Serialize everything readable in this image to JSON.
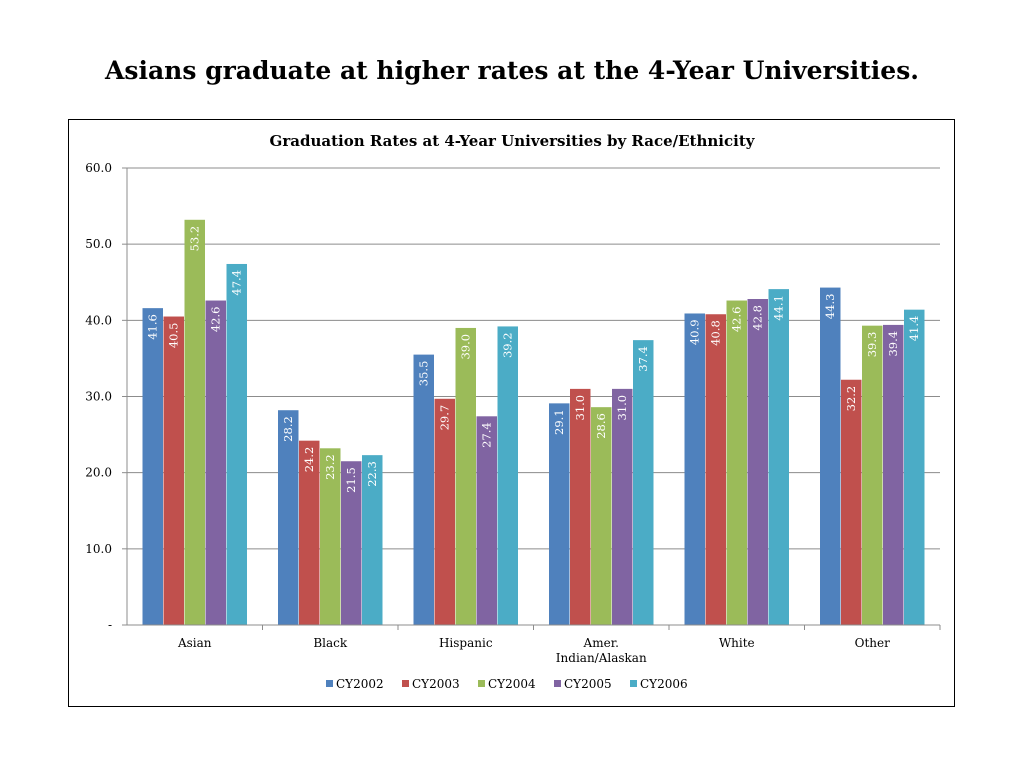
{
  "slide_title": "Asians graduate at higher rates at the 4-Year Universities.",
  "chart_data": {
    "type": "bar",
    "title": "Graduation Rates at 4-Year Universities by Race/Ethnicity",
    "categories": [
      "Asian",
      "Black",
      "Hispanic",
      "Amer. Indian/Alaskan",
      "White",
      "Other"
    ],
    "category_lines": [
      [
        "Asian"
      ],
      [
        "Black"
      ],
      [
        "Hispanic"
      ],
      [
        "Amer.",
        "Indian/Alaskan"
      ],
      [
        "White"
      ],
      [
        "Other"
      ]
    ],
    "y_ticks": [
      "-",
      "10.0",
      "20.0",
      "30.0",
      "40.0",
      "50.0",
      "60.0"
    ],
    "ylim": [
      0,
      60
    ],
    "grid": true,
    "legend_position": "bottom",
    "series": [
      {
        "name": "CY2002",
        "color": "#4F81BD",
        "values": [
          41.6,
          28.2,
          35.5,
          29.1,
          40.9,
          44.3
        ],
        "labels": [
          "41.6",
          "28.2",
          "35.5",
          "29.1",
          "40.9",
          "44.3"
        ]
      },
      {
        "name": "CY2003",
        "color": "#C0504D",
        "values": [
          40.5,
          24.2,
          29.7,
          31.0,
          40.8,
          32.2
        ],
        "labels": [
          "40.5",
          "24.2",
          "29.7",
          "31.0",
          "40.8",
          "32.2"
        ]
      },
      {
        "name": "CY2004",
        "color": "#9BBB59",
        "values": [
          53.2,
          23.2,
          39.0,
          28.6,
          42.6,
          39.3
        ],
        "labels": [
          "53.2",
          "23.2",
          "39.0",
          "28.6",
          "42.6",
          "39.3"
        ]
      },
      {
        "name": "CY2005",
        "color": "#8064A2",
        "values": [
          42.6,
          21.5,
          27.4,
          31.0,
          42.8,
          39.4
        ],
        "labels": [
          "42.6",
          "21.5",
          "27.4",
          "31.0",
          "42.8",
          "39.4"
        ]
      },
      {
        "name": "CY2006",
        "color": "#4BACC6",
        "values": [
          47.4,
          22.3,
          39.2,
          37.4,
          44.1,
          41.4
        ],
        "labels": [
          "47.4",
          "22.3",
          "39.2",
          "37.4",
          "44.1",
          "41.4"
        ]
      }
    ]
  }
}
